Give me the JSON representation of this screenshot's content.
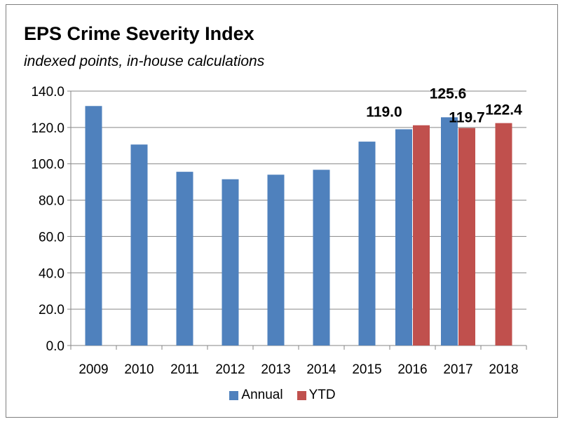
{
  "chart_data": {
    "type": "bar",
    "title": "EPS Crime Severity Index",
    "subtitle": "indexed points, in-house calculations",
    "xlabel": "",
    "ylabel": "",
    "categories": [
      "2009",
      "2010",
      "2011",
      "2012",
      "2013",
      "2014",
      "2015",
      "2016",
      "2017",
      "2018"
    ],
    "series": [
      {
        "name": "Annual",
        "color": "#4f81bd",
        "values": [
          131.8,
          110.6,
          95.6,
          91.5,
          94.0,
          96.7,
          112.2,
          119.0,
          125.6,
          null
        ]
      },
      {
        "name": "YTD",
        "color": "#c0504d",
        "values": [
          null,
          null,
          null,
          null,
          null,
          null,
          null,
          121.2,
          119.7,
          122.4
        ]
      }
    ],
    "data_labels": [
      {
        "series": "Annual",
        "category": "2016",
        "text": "119.0"
      },
      {
        "series": "Annual",
        "category": "2017",
        "text": "125.6"
      },
      {
        "series": "YTD",
        "category": "2017",
        "text": "119.7"
      },
      {
        "series": "YTD",
        "category": "2018",
        "text": "122.4"
      }
    ],
    "ylim": [
      0,
      140
    ],
    "yticks": [
      "0.0",
      "20.0",
      "40.0",
      "60.0",
      "80.0",
      "100.0",
      "120.0",
      "140.0"
    ],
    "grid": true,
    "legend_position": "bottom"
  }
}
